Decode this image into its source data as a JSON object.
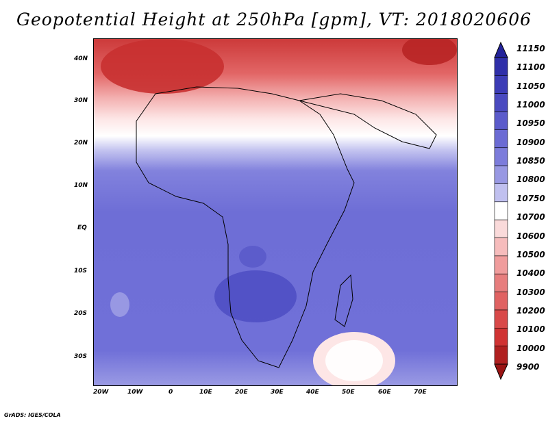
{
  "title": "Geopotential Height at 250hPa [gpm], VT: 2018020606",
  "footer": "GrADS: IGES/COLA",
  "map": {
    "lat_labels": [
      "40N",
      "30N",
      "20N",
      "10N",
      "EQ",
      "10S",
      "20S",
      "30S"
    ],
    "lon_labels": [
      "20W",
      "10W",
      "0",
      "10E",
      "20E",
      "30E",
      "40E",
      "50E",
      "60E",
      "70E"
    ]
  },
  "colorbar": {
    "levels": [
      "11150",
      "11100",
      "11050",
      "11000",
      "10950",
      "10900",
      "10850",
      "10800",
      "10750",
      "10700",
      "10600",
      "10500",
      "10400",
      "10300",
      "10200",
      "10100",
      "10000",
      "9900"
    ],
    "colors": [
      "#23239a",
      "#2f2fa9",
      "#3c3cb6",
      "#4a4ac0",
      "#5b5bcb",
      "#6b6bd4",
      "#7c7cdb",
      "#9898e3",
      "#c0c0ef",
      "#ffffff",
      "#fadada",
      "#f6bcbc",
      "#f09c9c",
      "#e77d7d",
      "#e06262",
      "#d94949",
      "#d03333",
      "#b02020",
      "#9a1414"
    ]
  }
}
